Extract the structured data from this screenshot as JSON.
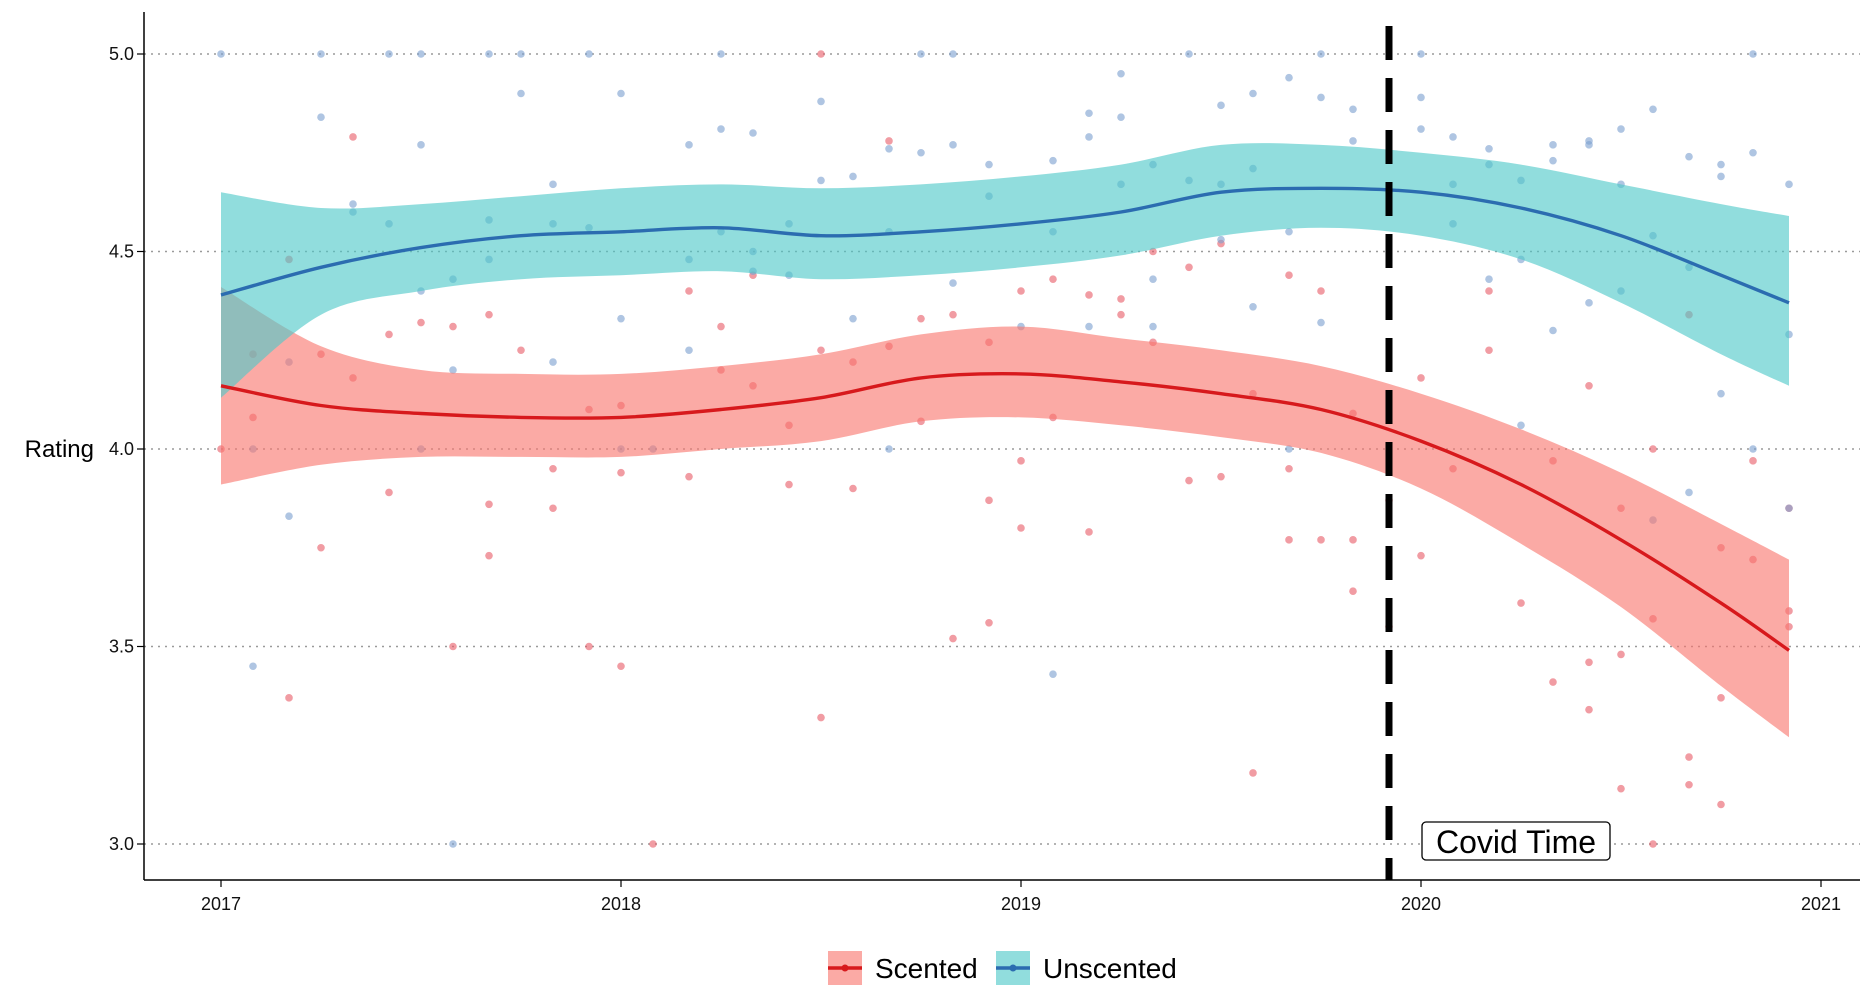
{
  "chart_data": {
    "type": "line",
    "ylabel": "Rating",
    "xlabel": "",
    "xlim": [
      2016.8,
      2021.1
    ],
    "ylim": [
      2.9,
      5.1
    ],
    "x_ticks": [
      2017,
      2018,
      2019,
      2020,
      2021
    ],
    "x_tick_labels": [
      "2017",
      "2018",
      "2019",
      "2020",
      "2021"
    ],
    "y_ticks": [
      3.0,
      3.5,
      4.0,
      4.5,
      5.0
    ],
    "y_tick_labels": [
      "3.0",
      "3.5",
      "4.0",
      "4.5",
      "5.0"
    ],
    "grid": "horizontal-dotted",
    "legend_position": "bottom",
    "vline": {
      "x": 2019.92,
      "style": "dashed",
      "color": "#000000"
    },
    "annotation": {
      "text": "Covid Time",
      "x": 2020.25,
      "y": 3.0
    },
    "series": [
      {
        "name": "Scented",
        "line_color": "#d7191c",
        "band_color": "#f8766d",
        "point_color": "#e8606a",
        "x": [
          2017.0,
          2017.25,
          2017.5,
          2017.75,
          2018.0,
          2018.25,
          2018.5,
          2018.75,
          2019.0,
          2019.25,
          2019.5,
          2019.75,
          2020.0,
          2020.25,
          2020.5,
          2020.75,
          2020.92
        ],
        "y": [
          4.16,
          4.11,
          4.09,
          4.08,
          4.08,
          4.1,
          4.13,
          4.18,
          4.19,
          4.17,
          4.14,
          4.1,
          4.02,
          3.91,
          3.77,
          3.61,
          3.49
        ],
        "lower": [
          3.91,
          3.96,
          3.98,
          3.98,
          3.98,
          4.0,
          4.02,
          4.07,
          4.08,
          4.06,
          4.03,
          3.99,
          3.9,
          3.76,
          3.6,
          3.4,
          3.27
        ],
        "upper": [
          4.41,
          4.26,
          4.2,
          4.19,
          4.19,
          4.21,
          4.24,
          4.29,
          4.31,
          4.28,
          4.25,
          4.21,
          4.14,
          4.05,
          3.94,
          3.81,
          3.72
        ],
        "points": [
          [
            2017.0,
            4.0
          ],
          [
            2017.08,
            4.24
          ],
          [
            2017.08,
            4.08
          ],
          [
            2017.17,
            4.48
          ],
          [
            2017.17,
            3.37
          ],
          [
            2017.25,
            4.24
          ],
          [
            2017.25,
            3.75
          ],
          [
            2017.33,
            4.79
          ],
          [
            2017.33,
            4.18
          ],
          [
            2017.42,
            4.29
          ],
          [
            2017.42,
            3.89
          ],
          [
            2017.5,
            4.32
          ],
          [
            2017.58,
            4.31
          ],
          [
            2017.58,
            3.5
          ],
          [
            2017.67,
            4.34
          ],
          [
            2017.67,
            3.86
          ],
          [
            2017.67,
            3.73
          ],
          [
            2017.75,
            4.25
          ],
          [
            2017.83,
            3.95
          ],
          [
            2017.83,
            3.85
          ],
          [
            2017.92,
            4.1
          ],
          [
            2017.92,
            3.5
          ],
          [
            2018.0,
            4.11
          ],
          [
            2018.0,
            3.94
          ],
          [
            2018.0,
            3.45
          ],
          [
            2018.08,
            3.0
          ],
          [
            2018.17,
            4.4
          ],
          [
            2018.17,
            3.93
          ],
          [
            2018.25,
            4.31
          ],
          [
            2018.25,
            4.2
          ],
          [
            2018.33,
            4.44
          ],
          [
            2018.33,
            4.16
          ],
          [
            2018.42,
            4.06
          ],
          [
            2018.42,
            3.91
          ],
          [
            2018.5,
            5.0
          ],
          [
            2018.5,
            4.25
          ],
          [
            2018.5,
            3.32
          ],
          [
            2018.58,
            4.22
          ],
          [
            2018.58,
            3.9
          ],
          [
            2018.67,
            4.78
          ],
          [
            2018.67,
            4.26
          ],
          [
            2018.75,
            4.33
          ],
          [
            2018.75,
            4.07
          ],
          [
            2018.83,
            4.34
          ],
          [
            2018.83,
            3.52
          ],
          [
            2018.92,
            4.27
          ],
          [
            2018.92,
            3.87
          ],
          [
            2018.92,
            3.56
          ],
          [
            2019.0,
            4.4
          ],
          [
            2019.0,
            3.97
          ],
          [
            2019.0,
            3.8
          ],
          [
            2019.08,
            4.43
          ],
          [
            2019.08,
            4.08
          ],
          [
            2019.17,
            4.39
          ],
          [
            2019.17,
            3.79
          ],
          [
            2019.25,
            4.38
          ],
          [
            2019.25,
            4.34
          ],
          [
            2019.33,
            4.5
          ],
          [
            2019.33,
            4.27
          ],
          [
            2019.42,
            4.46
          ],
          [
            2019.42,
            3.92
          ],
          [
            2019.5,
            4.52
          ],
          [
            2019.5,
            3.93
          ],
          [
            2019.58,
            4.14
          ],
          [
            2019.58,
            3.18
          ],
          [
            2019.67,
            4.44
          ],
          [
            2019.67,
            3.95
          ],
          [
            2019.67,
            3.77
          ],
          [
            2019.75,
            4.4
          ],
          [
            2019.75,
            3.77
          ],
          [
            2019.83,
            3.77
          ],
          [
            2019.83,
            3.64
          ],
          [
            2019.83,
            4.09
          ],
          [
            2019.92,
            3.87
          ],
          [
            2019.92,
            3.55
          ],
          [
            2020.0,
            4.18
          ],
          [
            2020.0,
            3.73
          ],
          [
            2020.08,
            3.95
          ],
          [
            2020.17,
            4.4
          ],
          [
            2020.17,
            4.25
          ],
          [
            2020.25,
            3.61
          ],
          [
            2020.33,
            3.97
          ],
          [
            2020.33,
            3.41
          ],
          [
            2020.42,
            4.16
          ],
          [
            2020.42,
            3.46
          ],
          [
            2020.42,
            3.34
          ],
          [
            2020.5,
            3.85
          ],
          [
            2020.5,
            3.48
          ],
          [
            2020.5,
            3.14
          ],
          [
            2020.58,
            4.0
          ],
          [
            2020.58,
            3.57
          ],
          [
            2020.58,
            3.0
          ],
          [
            2020.67,
            4.34
          ],
          [
            2020.67,
            3.22
          ],
          [
            2020.67,
            3.15
          ],
          [
            2020.75,
            3.75
          ],
          [
            2020.75,
            3.37
          ],
          [
            2020.75,
            3.1
          ],
          [
            2020.83,
            3.97
          ],
          [
            2020.83,
            3.72
          ],
          [
            2020.92,
            3.85
          ],
          [
            2020.92,
            3.59
          ],
          [
            2020.92,
            3.55
          ]
        ]
      },
      {
        "name": "Unscented",
        "line_color": "#2b6cb0",
        "band_color": "#4ec8c8",
        "point_color": "#7ea2d0",
        "x": [
          2017.0,
          2017.25,
          2017.5,
          2017.75,
          2018.0,
          2018.25,
          2018.5,
          2018.75,
          2019.0,
          2019.25,
          2019.5,
          2019.75,
          2020.0,
          2020.25,
          2020.5,
          2020.75,
          2020.92
        ],
        "y": [
          4.39,
          4.46,
          4.51,
          4.54,
          4.55,
          4.56,
          4.54,
          4.55,
          4.57,
          4.6,
          4.65,
          4.66,
          4.65,
          4.61,
          4.54,
          4.44,
          4.37
        ],
        "lower": [
          4.13,
          4.34,
          4.4,
          4.43,
          4.44,
          4.45,
          4.43,
          4.44,
          4.46,
          4.49,
          4.54,
          4.56,
          4.54,
          4.48,
          4.37,
          4.24,
          4.16
        ],
        "upper": [
          4.65,
          4.61,
          4.62,
          4.64,
          4.66,
          4.67,
          4.66,
          4.67,
          4.69,
          4.72,
          4.77,
          4.77,
          4.75,
          4.72,
          4.67,
          4.62,
          4.59
        ],
        "points": [
          [
            2017.0,
            5.0
          ],
          [
            2017.08,
            4.0
          ],
          [
            2017.08,
            3.45
          ],
          [
            2017.17,
            4.22
          ],
          [
            2017.17,
            3.83
          ],
          [
            2017.25,
            5.0
          ],
          [
            2017.25,
            4.84
          ],
          [
            2017.33,
            4.62
          ],
          [
            2017.33,
            4.6
          ],
          [
            2017.42,
            5.0
          ],
          [
            2017.42,
            4.57
          ],
          [
            2017.5,
            5.0
          ],
          [
            2017.5,
            4.77
          ],
          [
            2017.5,
            4.4
          ],
          [
            2017.5,
            4.0
          ],
          [
            2017.58,
            4.43
          ],
          [
            2017.58,
            4.2
          ],
          [
            2017.58,
            3.0
          ],
          [
            2017.67,
            5.0
          ],
          [
            2017.67,
            4.58
          ],
          [
            2017.67,
            4.48
          ],
          [
            2017.75,
            5.0
          ],
          [
            2017.75,
            4.9
          ],
          [
            2017.83,
            4.67
          ],
          [
            2017.83,
            4.57
          ],
          [
            2017.83,
            4.22
          ],
          [
            2017.92,
            5.0
          ],
          [
            2017.92,
            4.56
          ],
          [
            2018.0,
            4.9
          ],
          [
            2018.0,
            4.33
          ],
          [
            2018.0,
            4.0
          ],
          [
            2018.08,
            4.0
          ],
          [
            2018.17,
            4.77
          ],
          [
            2018.17,
            4.48
          ],
          [
            2018.17,
            4.25
          ],
          [
            2018.25,
            5.0
          ],
          [
            2018.25,
            4.81
          ],
          [
            2018.25,
            4.55
          ],
          [
            2018.33,
            4.8
          ],
          [
            2018.33,
            4.5
          ],
          [
            2018.33,
            4.45
          ],
          [
            2018.42,
            4.57
          ],
          [
            2018.42,
            4.44
          ],
          [
            2018.5,
            4.88
          ],
          [
            2018.5,
            4.68
          ],
          [
            2018.58,
            4.69
          ],
          [
            2018.58,
            4.33
          ],
          [
            2018.67,
            4.76
          ],
          [
            2018.67,
            4.55
          ],
          [
            2018.67,
            4.0
          ],
          [
            2018.75,
            5.0
          ],
          [
            2018.75,
            4.75
          ],
          [
            2018.83,
            5.0
          ],
          [
            2018.83,
            4.77
          ],
          [
            2018.83,
            4.42
          ],
          [
            2018.92,
            4.72
          ],
          [
            2018.92,
            4.64
          ],
          [
            2019.0,
            4.31
          ],
          [
            2019.08,
            4.73
          ],
          [
            2019.08,
            4.55
          ],
          [
            2019.08,
            3.43
          ],
          [
            2019.17,
            4.85
          ],
          [
            2019.17,
            4.79
          ],
          [
            2019.17,
            4.31
          ],
          [
            2019.25,
            4.95
          ],
          [
            2019.25,
            4.84
          ],
          [
            2019.25,
            4.67
          ],
          [
            2019.33,
            4.72
          ],
          [
            2019.33,
            4.43
          ],
          [
            2019.33,
            4.31
          ],
          [
            2019.42,
            5.0
          ],
          [
            2019.42,
            4.68
          ],
          [
            2019.5,
            4.87
          ],
          [
            2019.5,
            4.67
          ],
          [
            2019.5,
            4.53
          ],
          [
            2019.58,
            4.9
          ],
          [
            2019.58,
            4.71
          ],
          [
            2019.58,
            4.36
          ],
          [
            2019.67,
            4.94
          ],
          [
            2019.67,
            4.55
          ],
          [
            2019.67,
            4.0
          ],
          [
            2019.75,
            5.0
          ],
          [
            2019.75,
            4.89
          ],
          [
            2019.75,
            4.32
          ],
          [
            2019.83,
            4.86
          ],
          [
            2019.83,
            4.78
          ],
          [
            2019.92,
            4.65
          ],
          [
            2020.0,
            5.0
          ],
          [
            2020.0,
            4.89
          ],
          [
            2020.0,
            4.81
          ],
          [
            2020.08,
            4.79
          ],
          [
            2020.08,
            4.67
          ],
          [
            2020.08,
            4.57
          ],
          [
            2020.17,
            4.76
          ],
          [
            2020.17,
            4.72
          ],
          [
            2020.17,
            4.43
          ],
          [
            2020.25,
            4.68
          ],
          [
            2020.25,
            4.48
          ],
          [
            2020.25,
            4.06
          ],
          [
            2020.33,
            4.77
          ],
          [
            2020.33,
            4.73
          ],
          [
            2020.33,
            4.3
          ],
          [
            2020.42,
            4.78
          ],
          [
            2020.42,
            4.77
          ],
          [
            2020.42,
            4.37
          ],
          [
            2020.5,
            4.81
          ],
          [
            2020.5,
            4.67
          ],
          [
            2020.5,
            4.4
          ],
          [
            2020.58,
            4.86
          ],
          [
            2020.58,
            4.54
          ],
          [
            2020.58,
            3.82
          ],
          [
            2020.67,
            4.74
          ],
          [
            2020.67,
            4.46
          ],
          [
            2020.67,
            3.89
          ],
          [
            2020.75,
            4.72
          ],
          [
            2020.75,
            4.69
          ],
          [
            2020.75,
            4.14
          ],
          [
            2020.83,
            5.0
          ],
          [
            2020.83,
            4.75
          ],
          [
            2020.83,
            4.0
          ],
          [
            2020.92,
            4.67
          ],
          [
            2020.92,
            4.29
          ],
          [
            2020.92,
            3.85
          ]
        ]
      }
    ]
  }
}
